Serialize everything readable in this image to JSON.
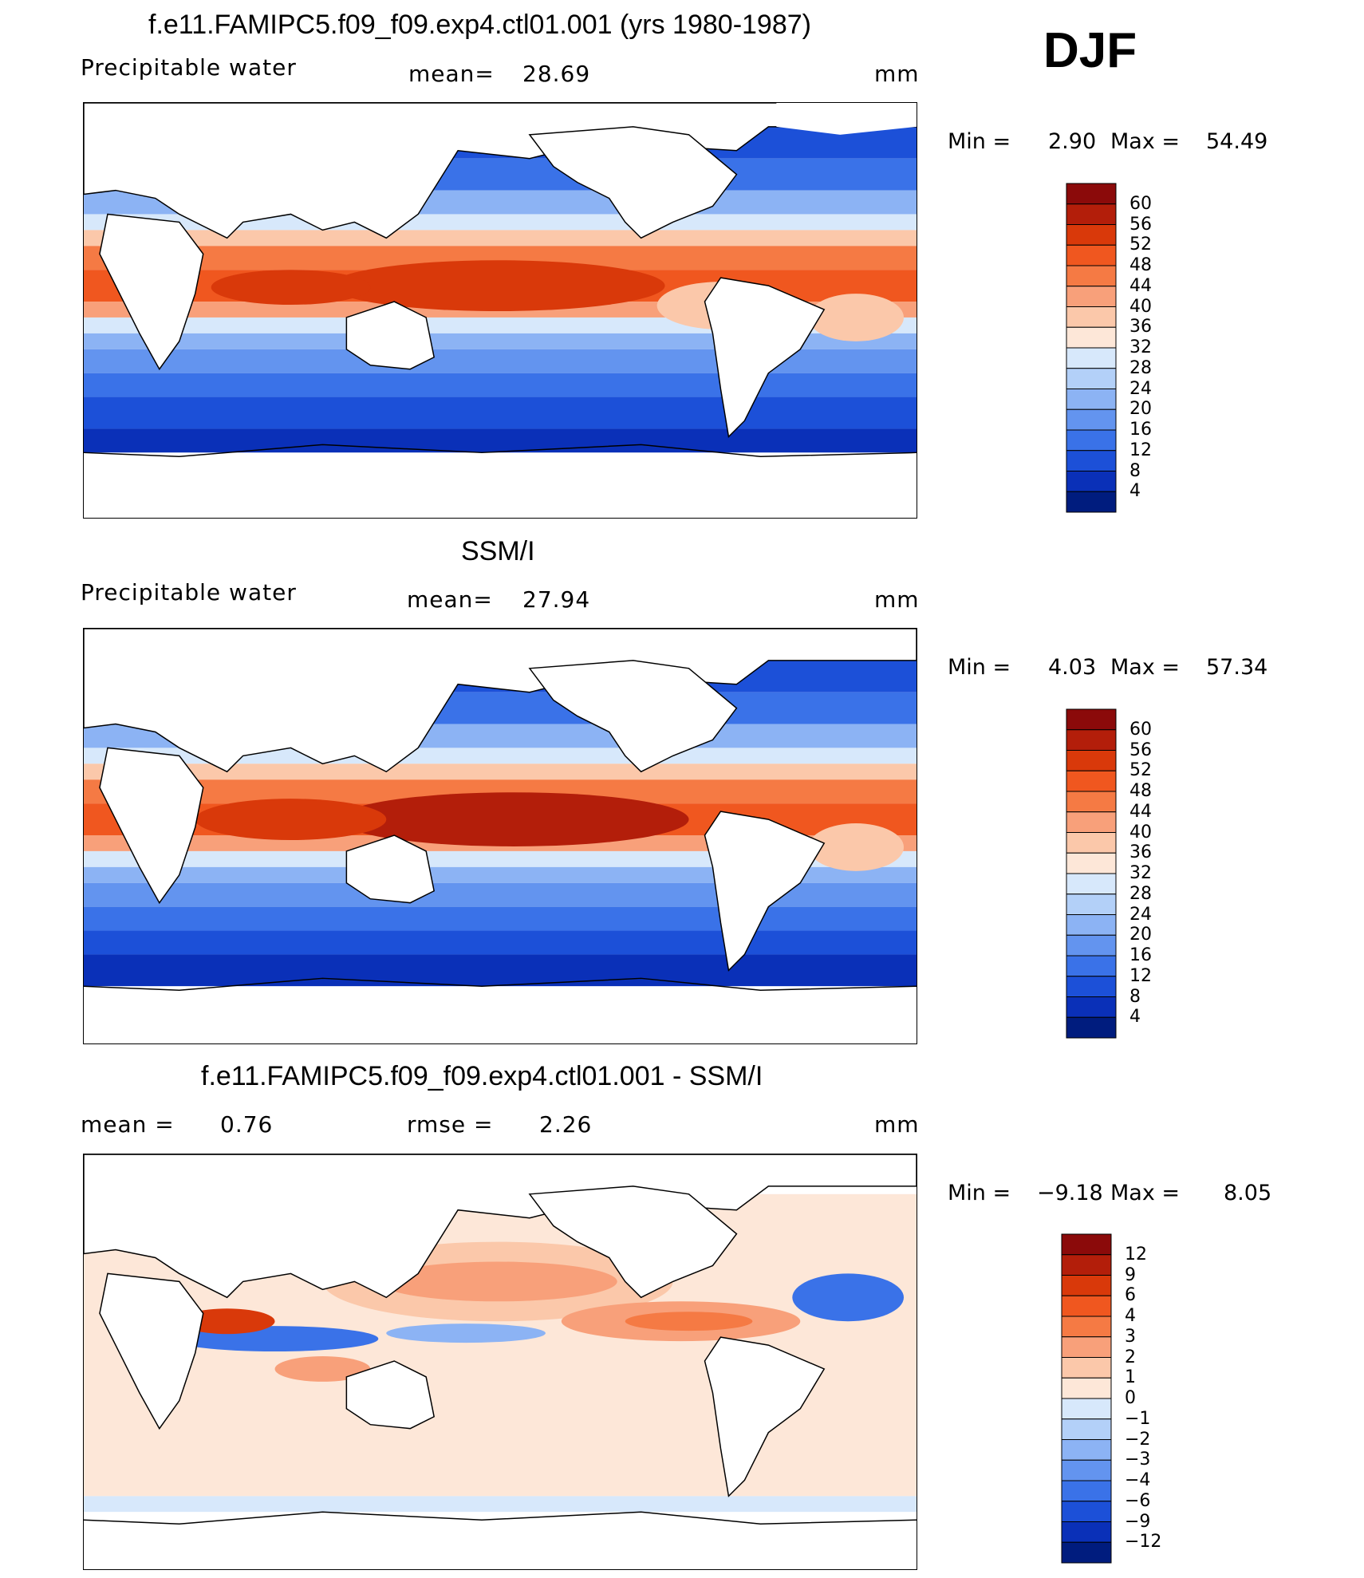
{
  "season": "DJF",
  "units": "mm",
  "panels": [
    {
      "title": "f.e11.FAMIPC5.f09_f09.exp4.ctl01.001 (yrs 1980-1987)",
      "variable": "Precipitable water",
      "stat1_label": "mean=",
      "stat1_value": "28.69",
      "stat2_label": "",
      "stat2_value": "",
      "units": "mm",
      "min_label": "Min =",
      "min_value": "2.90",
      "max_label": "Max =",
      "max_value": "54.49",
      "colorbar_levels": [
        "60",
        "56",
        "52",
        "48",
        "44",
        "40",
        "36",
        "32",
        "28",
        "24",
        "20",
        "16",
        "12",
        "8",
        "4"
      ],
      "colorbar_colors": [
        "#8b0a0a",
        "#b31e0a",
        "#d9390a",
        "#f0571f",
        "#f57a44",
        "#f8a07a",
        "#fbc8aa",
        "#fde7d8",
        "#d7e8fb",
        "#b3d0f8",
        "#8cb3f4",
        "#6394ef",
        "#3a72e8",
        "#1c50d8",
        "#0a30b8",
        "#001c7e"
      ]
    },
    {
      "title": "SSM/I",
      "variable": "Precipitable water",
      "stat1_label": "mean=",
      "stat1_value": "27.94",
      "stat2_label": "",
      "stat2_value": "",
      "units": "mm",
      "min_label": "Min =",
      "min_value": "4.03",
      "max_label": "Max =",
      "max_value": "57.34",
      "colorbar_levels": [
        "60",
        "56",
        "52",
        "48",
        "44",
        "40",
        "36",
        "32",
        "28",
        "24",
        "20",
        "16",
        "12",
        "8",
        "4"
      ],
      "colorbar_colors": [
        "#8b0a0a",
        "#b31e0a",
        "#d9390a",
        "#f0571f",
        "#f57a44",
        "#f8a07a",
        "#fbc8aa",
        "#fde7d8",
        "#d7e8fb",
        "#b3d0f8",
        "#8cb3f4",
        "#6394ef",
        "#3a72e8",
        "#1c50d8",
        "#0a30b8",
        "#001c7e"
      ]
    },
    {
      "title": "f.e11.FAMIPC5.f09_f09.exp4.ctl01.001 - SSM/I",
      "variable": "",
      "stat1_label": "mean =",
      "stat1_value": "0.76",
      "stat2_label": "rmse =",
      "stat2_value": "2.26",
      "units": "mm",
      "min_label": "Min =",
      "min_value": "−9.18",
      "max_label": "Max =",
      "max_value": "8.05",
      "colorbar_levels": [
        "12",
        "9",
        "6",
        "4",
        "3",
        "2",
        "1",
        "0",
        "−1",
        "−2",
        "−3",
        "−4",
        "−6",
        "−9",
        "−12"
      ],
      "colorbar_colors": [
        "#8b0a0a",
        "#b31e0a",
        "#d9390a",
        "#f0571f",
        "#f57a44",
        "#f8a07a",
        "#fbc8aa",
        "#fde7d8",
        "#d7e8fb",
        "#b3d0f8",
        "#8cb3f4",
        "#6394ef",
        "#3a72e8",
        "#1c50d8",
        "#0a30b8",
        "#001c7e"
      ]
    }
  ]
}
